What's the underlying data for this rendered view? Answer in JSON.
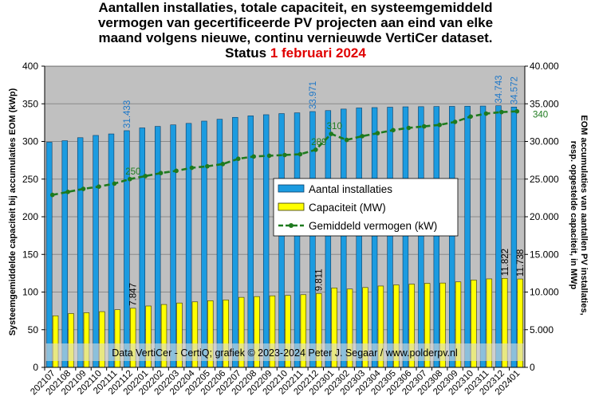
{
  "title": {
    "line1": "Aantallen installaties, totale capaciteit, en systeemgemiddeld",
    "line2": "vermogen van gecertificeerde PV projecten aan eind van elke",
    "line3": "maand volgens nieuwe, continu vernieuwde VertiCer dataset.",
    "status_prefix": "Status ",
    "status_date": "1 februari 2024"
  },
  "credit": "Data VertiCer - CertiQ; grafiek © 2023-2024 Peter J. Segaar / www.polderpv.nl",
  "colors": {
    "plot_bg": "#c0c0c0",
    "installations": "#1b9be0",
    "capacity": "#ffff00",
    "average": "#1e7a1e",
    "label_blue": "#1f78c8",
    "date_red": "#e00000"
  },
  "chart_data": {
    "type": "bar",
    "title": "Aantallen installaties, totale capaciteit, en systeemgemiddeld vermogen van gecertificeerde PV projecten aan eind van elke maand volgens nieuwe, continu vernieuwde VertiCer dataset. Status 1 februari 2024",
    "categories": [
      "202107",
      "202108",
      "202109",
      "202110",
      "202111",
      "202112",
      "202201",
      "202202",
      "202203",
      "202204",
      "202205",
      "202206",
      "202207",
      "202208",
      "202209",
      "202210",
      "202211",
      "202212",
      "202301",
      "202302",
      "202303",
      "202304",
      "202305",
      "202306",
      "202307",
      "202308",
      "202309",
      "202310",
      "202311",
      "202312",
      "202401"
    ],
    "ylabel_left": "Systeemgemiddelde capaciteit bij accumulaties EOM (kWp)",
    "ylabel_right_line1": "EOM accumulaties van aantallen PV installaties,",
    "ylabel_right_line2": "resp. opgestelde capaciteit, in MWp",
    "ylim_left": [
      0,
      400
    ],
    "ylim_right": [
      0,
      40000
    ],
    "left_ticks": [
      "0",
      "50",
      "100",
      "150",
      "200",
      "250",
      "300",
      "350",
      "400"
    ],
    "right_ticks": [
      "0",
      "5.000",
      "10.000",
      "15.000",
      "20.000",
      "25.000",
      "30.000",
      "35.000",
      "40.000"
    ],
    "grid": true,
    "legend": {
      "position": "center-right",
      "entries": [
        "Aantal installaties",
        "Capaciteit (MW)",
        "Gemiddeld vermogen (kW)"
      ]
    },
    "series": [
      {
        "name": "Aantal installaties",
        "axis": "right",
        "values": [
          29900,
          30100,
          30500,
          30800,
          31000,
          31433,
          31800,
          32000,
          32200,
          32400,
          32700,
          32950,
          33200,
          33400,
          33550,
          33700,
          33800,
          33971,
          34100,
          34300,
          34450,
          34500,
          34550,
          34600,
          34620,
          34640,
          34660,
          34680,
          34700,
          34743,
          34572
        ]
      },
      {
        "name": "Capaciteit (MW)",
        "axis": "right",
        "values": [
          6850,
          7150,
          7250,
          7400,
          7650,
          7847,
          8150,
          8350,
          8550,
          8700,
          8850,
          8950,
          9300,
          9400,
          9500,
          9550,
          9650,
          9811,
          10550,
          10400,
          10600,
          10800,
          10950,
          11050,
          11150,
          11200,
          11350,
          11600,
          11750,
          11822,
          11738
        ]
      },
      {
        "name": "Gemiddeld vermogen (kW)",
        "axis": "left",
        "values": [
          229,
          233,
          237,
          240,
          244,
          250,
          254,
          258,
          261,
          265,
          267,
          270,
          277,
          280,
          281,
          282,
          283,
          289,
          310,
          302,
          307,
          311,
          315,
          318,
          320,
          322,
          326,
          333,
          337,
          339,
          340
        ]
      }
    ],
    "annotations": {
      "installations": [
        {
          "i": 5,
          "text": "31.433"
        },
        {
          "i": 17,
          "text": "33.971"
        },
        {
          "i": 29,
          "text": "34.743"
        },
        {
          "i": 30,
          "text": "34.572"
        }
      ],
      "capacity": [
        {
          "i": 5,
          "text": "7.847"
        },
        {
          "i": 17,
          "text": "9.811"
        },
        {
          "i": 29,
          "text": "11.822"
        },
        {
          "i": 30,
          "text": "11.738"
        }
      ],
      "average": [
        {
          "i": 5,
          "text": "250"
        },
        {
          "i": 17,
          "text": "289"
        },
        {
          "i": 18,
          "text": "310"
        },
        {
          "i": 30,
          "text": "340"
        }
      ]
    }
  }
}
